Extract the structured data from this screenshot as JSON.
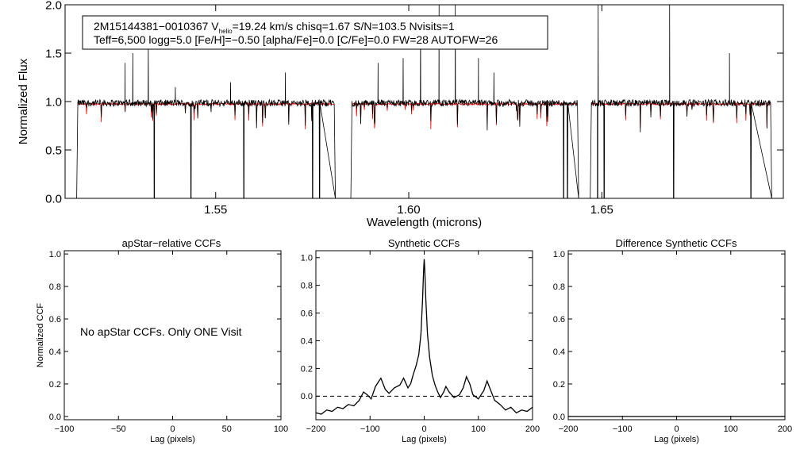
{
  "chart_data": [
    {
      "type": "line",
      "xlabel": "Wavelength (microns)",
      "ylabel": "Normalized Flux",
      "xlim": [
        1.511,
        1.697
      ],
      "ylim": [
        0.0,
        2.0
      ],
      "xticks": [
        1.55,
        1.6,
        1.65
      ],
      "xtick_labels": [
        "1.55",
        "1.60",
        "1.65"
      ],
      "yticks": [
        0.0,
        0.5,
        1.0,
        1.5,
        2.0
      ],
      "ytick_labels": [
        "0.0",
        "0.5",
        "1.0",
        "1.5",
        "2.0"
      ],
      "colors": {
        "observed": "#000000",
        "model": "#ff0000"
      },
      "detectors": [
        {
          "x0": 1.514,
          "x1": 1.581
        },
        {
          "x0": 1.585,
          "x1": 1.644
        },
        {
          "x0": 1.647,
          "x1": 1.694
        }
      ],
      "emission_spikes": [
        {
          "x": 1.5265,
          "y": 1.4
        },
        {
          "x": 1.5285,
          "y": 1.5
        },
        {
          "x": 1.5325,
          "y": 1.6
        },
        {
          "x": 1.5395,
          "y": 1.15
        },
        {
          "x": 1.5538,
          "y": 1.2
        },
        {
          "x": 1.568,
          "y": 1.3
        },
        {
          "x": 1.592,
          "y": 1.4
        },
        {
          "x": 1.5985,
          "y": 1.45
        },
        {
          "x": 1.603,
          "y": 1.8
        },
        {
          "x": 1.6078,
          "y": 2.0
        },
        {
          "x": 1.612,
          "y": 2.0
        },
        {
          "x": 1.618,
          "y": 1.45
        },
        {
          "x": 1.622,
          "y": 1.3
        },
        {
          "x": 1.649,
          "y": 2.0
        },
        {
          "x": 1.6675,
          "y": 2.0
        },
        {
          "x": 1.683,
          "y": 1.5
        }
      ],
      "absorption_gaps": [
        1.534,
        1.5435,
        1.5572,
        1.575,
        1.5768,
        1.64,
        1.641,
        1.6488,
        1.6505,
        1.6685,
        1.6885
      ],
      "info_box": {
        "line1_prefix": "2M15144381−0010367  V",
        "line1_sub": "helio",
        "line1_suffix": "=19.24 km/s  chisq=1.67  S/N=103.5  Nvisits=1",
        "line2": "Teff=6,500 logg=5.0 [Fe/H]=−0.50 [alpha/Fe]=0.0 [C/Fe]=0.0 FW=28 AUTOFW=26"
      }
    },
    {
      "type": "line",
      "title": "apStar−relative CCFs",
      "xlabel": "Lag (pixels)",
      "ylabel": "Normalized CCF",
      "xlim": [
        -100,
        100
      ],
      "ylim": [
        -0.02,
        1.02
      ],
      "xticks": [
        -100,
        -50,
        0,
        50,
        100
      ],
      "xtick_labels": [
        "−100",
        "−50",
        "0",
        "50",
        "100"
      ],
      "yticks": [
        0.0,
        0.2,
        0.4,
        0.6,
        0.8,
        1.0
      ],
      "ytick_labels": [
        "0.0",
        "0.2",
        "0.4",
        "0.6",
        "0.8",
        "1.0"
      ],
      "message": "No apStar CCFs.  Only ONE Visit",
      "series": []
    },
    {
      "type": "line",
      "title": "Synthetic CCFs",
      "xlabel": "Lag (pixels)",
      "xlim": [
        -200,
        200
      ],
      "ylim": [
        -0.17,
        1.05
      ],
      "xticks": [
        -200,
        -100,
        0,
        100,
        200
      ],
      "xtick_labels": [
        "−200",
        "−100",
        "0",
        "100",
        "200"
      ],
      "yticks": [
        0.0,
        0.2,
        0.4,
        0.6,
        0.8,
        1.0
      ],
      "ytick_labels": [
        "0.0",
        "0.2",
        "0.4",
        "0.6",
        "0.8",
        "1.0"
      ],
      "zero_line": 0.0,
      "series": [
        {
          "x": [
            -200,
            -190,
            -180,
            -170,
            -160,
            -150,
            -140,
            -130,
            -120,
            -112,
            -105,
            -98,
            -90,
            -80,
            -72,
            -65,
            -55,
            -45,
            -38,
            -30,
            -25,
            -20,
            -15,
            -10,
            -6,
            -3,
            -1,
            0,
            1,
            3,
            6,
            10,
            15,
            20,
            25,
            30,
            36,
            40,
            46,
            55,
            65,
            72,
            78,
            84,
            90,
            100,
            110,
            116,
            122,
            130,
            140,
            150,
            160,
            170,
            180,
            190,
            200
          ],
          "y": [
            -0.12,
            -0.13,
            -0.1,
            -0.11,
            -0.08,
            -0.09,
            -0.06,
            -0.07,
            -0.03,
            0.03,
            0.01,
            -0.02,
            0.07,
            0.13,
            0.05,
            0.02,
            0.06,
            0.08,
            0.13,
            0.06,
            0.09,
            0.16,
            0.22,
            0.3,
            0.45,
            0.7,
            0.92,
            0.99,
            0.92,
            0.7,
            0.45,
            0.28,
            0.15,
            0.08,
            0.03,
            -0.01,
            0.03,
            0.07,
            0.03,
            -0.01,
            0.01,
            0.06,
            0.14,
            0.09,
            0.01,
            -0.02,
            0.04,
            0.11,
            0.05,
            -0.03,
            -0.06,
            -0.1,
            -0.08,
            -0.12,
            -0.1,
            -0.11,
            -0.08
          ]
        }
      ]
    },
    {
      "type": "line",
      "title": "Difference Synthetic CCFs",
      "xlabel": "Lag (pixels)",
      "xlim": [
        -200,
        200
      ],
      "ylim": [
        -0.02,
        1.02
      ],
      "xticks": [
        -200,
        -100,
        0,
        100,
        200
      ],
      "xtick_labels": [
        "−200",
        "−100",
        "0",
        "100",
        "200"
      ],
      "yticks": [
        0.0,
        0.2,
        0.4,
        0.6,
        0.8,
        1.0
      ],
      "ytick_labels": [
        "0.0",
        "0.2",
        "0.4",
        "0.6",
        "0.8",
        "1.0"
      ],
      "series": [
        {
          "x": [
            -200,
            200
          ],
          "y": [
            0.0,
            0.0
          ]
        }
      ]
    }
  ]
}
